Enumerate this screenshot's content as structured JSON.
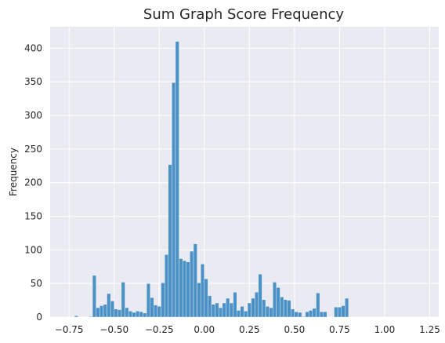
{
  "chart_data": {
    "type": "bar",
    "title": "Sum Graph Score Frequency",
    "xlabel": "",
    "ylabel": "Frequency",
    "xlim": [
      -0.855,
      1.3
    ],
    "ylim": [
      0,
      432
    ],
    "grid": true,
    "bin_width": 0.02,
    "x_ticks": [
      -0.75,
      -0.5,
      -0.25,
      0.0,
      0.25,
      0.5,
      0.75,
      1.0,
      1.25
    ],
    "x_tick_labels": [
      "−0.75",
      "−0.50",
      "−0.25",
      "0.00",
      "0.25",
      "0.50",
      "0.75",
      "1.00",
      "1.25"
    ],
    "y_ticks": [
      0,
      50,
      100,
      150,
      200,
      250,
      300,
      350,
      400
    ],
    "y_tick_labels": [
      "0",
      "50",
      "100",
      "150",
      "200",
      "250",
      "300",
      "350",
      "400"
    ],
    "bar_color": "#4c91c5",
    "series": [
      {
        "x_start": [
          -0.72,
          -0.64,
          -0.62,
          -0.6,
          -0.58,
          -0.56,
          -0.54,
          -0.52,
          -0.5,
          -0.48,
          -0.46,
          -0.44,
          -0.42,
          -0.4,
          -0.38,
          -0.36,
          -0.34,
          -0.32,
          -0.3,
          -0.28,
          -0.26,
          -0.24,
          -0.22,
          -0.2,
          -0.18,
          -0.16,
          -0.14,
          -0.12,
          -0.1,
          -0.08,
          -0.06,
          -0.04,
          -0.02,
          0.0,
          0.02,
          0.04,
          0.06,
          0.08,
          0.1,
          0.12,
          0.14,
          0.16,
          0.18,
          0.2,
          0.22,
          0.24,
          0.26,
          0.28,
          0.3,
          0.32,
          0.34,
          0.36,
          0.38,
          0.4,
          0.42,
          0.44,
          0.46,
          0.48,
          0.5,
          0.52,
          0.54,
          0.56,
          0.58,
          0.6,
          0.62,
          0.64,
          0.66,
          0.68,
          0.7,
          0.72,
          0.74,
          0.76,
          0.78,
          0.8,
          0.82,
          0.84,
          0.86,
          0.88,
          0.9,
          0.92,
          0.94,
          0.96,
          0.98,
          1.0,
          1.02,
          1.04,
          1.06,
          1.08,
          1.1,
          1.12,
          1.14,
          1.16,
          1.18,
          1.2,
          1.22,
          1.24
        ],
        "values": [
          2,
          1,
          62,
          14,
          17,
          19,
          35,
          24,
          12,
          11,
          52,
          14,
          9,
          7,
          9,
          8,
          6,
          50,
          29,
          18,
          16,
          51,
          93,
          227,
          349,
          410,
          87,
          84,
          82,
          98,
          109,
          51,
          79,
          57,
          32,
          19,
          21,
          14,
          21,
          28,
          21,
          37,
          10,
          16,
          9,
          21,
          28,
          37,
          64,
          26,
          16,
          14,
          52,
          44,
          30,
          26,
          25,
          12,
          8,
          7,
          1,
          8,
          10,
          13,
          36,
          8,
          8,
          0,
          0,
          15,
          15,
          17,
          28,
          0,
          0,
          0,
          0,
          0,
          0,
          0,
          0,
          0,
          0,
          0,
          0,
          0,
          0,
          0,
          0,
          0,
          0,
          0,
          0,
          0,
          0,
          0
        ]
      }
    ]
  }
}
